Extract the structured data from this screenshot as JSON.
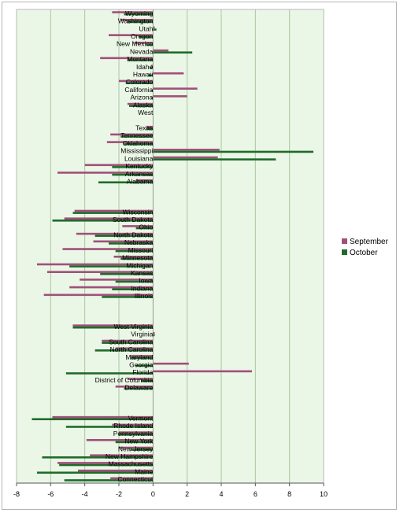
{
  "chart_data": {
    "type": "bar",
    "orientation": "horizontal",
    "xlim": [
      -8,
      10
    ],
    "x_ticks": [
      "-8",
      "-6",
      "-4",
      "-2",
      "0",
      "2",
      "4",
      "6",
      "8",
      "10"
    ],
    "grid": true,
    "legend_position": "right",
    "series_colors": [
      "#a0507a",
      "#1e6b2a"
    ],
    "categories": [
      "Wyoming",
      "Washington",
      "Utah",
      "Oregon",
      "New Mexico",
      "Nevada",
      "Montana",
      "Idaho",
      "Hawaii",
      "Colorado",
      "California",
      "Arizona",
      "Alaska",
      "West",
      "",
      "Texas",
      "Tennessee",
      "Oklahoma",
      "Mississippi",
      "Louisiana",
      "Kentucky",
      "Arkansas",
      "Alabama",
      "",
      "",
      "",
      "Wisconsin",
      "South Dakota",
      "Ohio",
      "North Dakota",
      "Nebraska",
      "Missouri",
      "Minnesota",
      "Michigan",
      "Kansas",
      "Iowa",
      "Indiana",
      "Illinois",
      "",
      "",
      "",
      "West Virginia",
      "Virginia",
      "South Carolina",
      "North Carolina",
      "Maryland",
      "Georgia",
      "Florida",
      "District of Columbia",
      "Delaware",
      "",
      "",
      "",
      "Vermont",
      "Rhode Island",
      "Pennsylvania",
      "New York",
      "New Jersey",
      "New Hampshire",
      "Massachusetts",
      "Maine",
      "Connecticut"
    ],
    "series": [
      {
        "name": "September",
        "values": [
          -2.4,
          -1.9,
          0.1,
          -2.6,
          -1.1,
          0.9,
          -3.1,
          -0.1,
          1.8,
          -2.0,
          2.6,
          2.0,
          -1.5,
          null,
          null,
          -0.4,
          -2.5,
          -2.7,
          3.9,
          3.8,
          -4.0,
          -5.6,
          -1.0,
          null,
          null,
          null,
          -4.6,
          -5.2,
          -1.8,
          -4.5,
          -3.5,
          -5.3,
          -2.3,
          -6.8,
          -6.2,
          -4.3,
          -4.9,
          -6.4,
          null,
          null,
          null,
          -4.7,
          0.1,
          -3.0,
          -2.2,
          -1.3,
          2.1,
          5.8,
          -1.5,
          -2.2,
          null,
          null,
          null,
          -5.9,
          -2.4,
          -2.0,
          -3.9,
          -2.0,
          -3.7,
          -5.6,
          -4.4,
          -2.5
        ]
      },
      {
        "name": "October",
        "values": [
          -1.7,
          -1.5,
          0.2,
          -0.8,
          -0.4,
          2.3,
          -1.5,
          -0.2,
          -0.3,
          -1.6,
          -0.1,
          -0.1,
          -1.4,
          null,
          null,
          -0.4,
          -1.9,
          -1.7,
          9.4,
          7.2,
          -2.4,
          -2.4,
          -3.2,
          null,
          null,
          null,
          -4.7,
          -5.9,
          -1.0,
          -3.4,
          -2.6,
          -2.2,
          -1.9,
          -4.9,
          -3.1,
          -2.2,
          -2.4,
          -3.0,
          null,
          null,
          null,
          -4.7,
          0.1,
          -3.0,
          -3.4,
          -1.3,
          -1.0,
          -5.1,
          -0.7,
          -1.7,
          null,
          null,
          null,
          -7.1,
          -5.1,
          -2.0,
          -2.2,
          -1.3,
          -6.5,
          -5.5,
          -6.8,
          -5.2
        ]
      }
    ]
  }
}
